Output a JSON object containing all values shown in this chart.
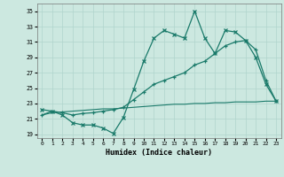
{
  "title": "",
  "xlabel": "Humidex (Indice chaleur)",
  "bg_color": "#cce8e0",
  "line_color": "#1a7a6a",
  "grid_color": "#b0d4cc",
  "xlim": [
    -0.5,
    23.5
  ],
  "ylim": [
    18.5,
    36
  ],
  "yticks": [
    19,
    21,
    23,
    25,
    27,
    29,
    31,
    33,
    35
  ],
  "xticks": [
    0,
    1,
    2,
    3,
    4,
    5,
    6,
    7,
    8,
    9,
    10,
    11,
    12,
    13,
    14,
    15,
    16,
    17,
    18,
    19,
    20,
    21,
    22,
    23
  ],
  "line1_x": [
    0,
    1,
    2,
    3,
    4,
    5,
    6,
    7,
    8,
    9,
    10,
    11,
    12,
    13,
    14,
    15,
    16,
    17,
    18,
    19,
    20,
    21,
    22,
    23
  ],
  "line1_y": [
    22.2,
    22.0,
    21.5,
    20.5,
    20.2,
    20.2,
    19.8,
    19.1,
    21.2,
    24.8,
    28.5,
    31.5,
    32.5,
    32.0,
    31.5,
    35.0,
    31.5,
    29.5,
    32.5,
    32.3,
    31.2,
    29.0,
    25.5,
    23.3
  ],
  "line2_x": [
    0,
    1,
    2,
    3,
    4,
    5,
    6,
    7,
    8,
    9,
    10,
    11,
    12,
    13,
    14,
    15,
    16,
    17,
    18,
    19,
    20,
    21,
    22,
    23
  ],
  "line2_y": [
    21.5,
    22.0,
    21.8,
    21.5,
    21.7,
    21.8,
    22.0,
    22.2,
    22.5,
    23.5,
    24.5,
    25.5,
    26.0,
    26.5,
    27.0,
    28.0,
    28.5,
    29.5,
    30.5,
    31.0,
    31.2,
    30.0,
    26.0,
    23.3
  ],
  "line3_x": [
    0,
    1,
    2,
    3,
    4,
    5,
    6,
    7,
    8,
    9,
    10,
    11,
    12,
    13,
    14,
    15,
    16,
    17,
    18,
    19,
    20,
    21,
    22,
    23
  ],
  "line3_y": [
    21.5,
    21.8,
    21.9,
    22.0,
    22.1,
    22.2,
    22.3,
    22.3,
    22.4,
    22.5,
    22.6,
    22.7,
    22.8,
    22.9,
    22.9,
    23.0,
    23.0,
    23.1,
    23.1,
    23.2,
    23.2,
    23.2,
    23.3,
    23.3
  ]
}
